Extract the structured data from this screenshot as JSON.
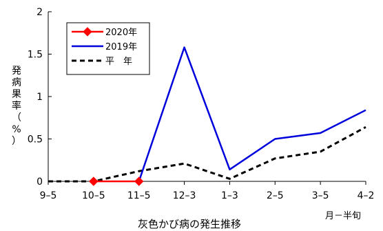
{
  "chart_data": {
    "type": "line",
    "xlabel": "灰色かび病の発生推移",
    "x_unit_label": "月－半旬",
    "ylabel": "発病果率（%）",
    "categories": [
      "9-5",
      "10-5",
      "11-5",
      "12-3",
      "1-3",
      "2-5",
      "3-5",
      "4-2"
    ],
    "ylim": [
      0,
      2
    ],
    "yticks": [
      0,
      0.5,
      1,
      1.5,
      2
    ],
    "ytick_labels": [
      "0",
      "0.5",
      "1",
      "1.5",
      "2"
    ],
    "grid": false,
    "legend_position": "top-left",
    "series": [
      {
        "name": "2020年",
        "color": "#ff0000",
        "style": "solid-diamond",
        "values": [
          null,
          0,
          0,
          null,
          null,
          null,
          null,
          null
        ]
      },
      {
        "name": "2019年",
        "color": "#0000dd",
        "style": "solid",
        "values": [
          null,
          null,
          0,
          1.58,
          0.14,
          0.5,
          0.57,
          0.84
        ]
      },
      {
        "name": "平　年",
        "color": "#000000",
        "style": "dashed",
        "values": [
          0,
          0,
          0.12,
          0.21,
          0.03,
          0.27,
          0.35,
          0.64
        ]
      }
    ]
  }
}
